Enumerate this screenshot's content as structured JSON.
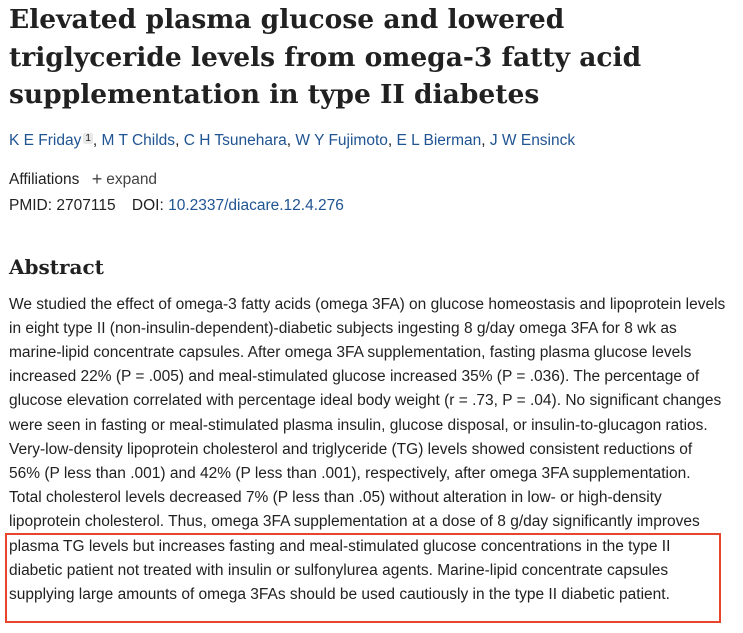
{
  "article": {
    "title": "Elevated plasma glucose and lowered triglyceride levels from omega-3 fatty acid supplementation in type II diabetes",
    "authors": [
      {
        "name": "K E Friday",
        "sup": "1"
      },
      {
        "name": "M T Childs"
      },
      {
        "name": "C H Tsunehara"
      },
      {
        "name": "W Y Fujimoto"
      },
      {
        "name": "E L Bierman"
      },
      {
        "name": "J W Ensinck"
      }
    ],
    "affiliations_label": "Affiliations",
    "expand_label": "expand",
    "pmid_label": "PMID:",
    "pmid": "2707115",
    "doi_label": "DOI:",
    "doi": "10.2337/diacare.12.4.276"
  },
  "abstract": {
    "heading": "Abstract",
    "text": "We studied the effect of omega-3 fatty acids (omega 3FA) on glucose homeostasis and lipoprotein levels in eight type II (non-insulin-dependent)-diabetic subjects ingesting 8 g/day omega 3FA for 8 wk as marine-lipid concentrate capsules. After omega 3FA supplementation, fasting plasma glucose levels increased 22% (P = .005) and meal-stimulated glucose increased 35% (P = .036). The percentage of glucose elevation correlated with percentage ideal body weight (r = .73, P = .04). No significant changes were seen in fasting or meal-stimulated plasma insulin, glucose disposal, or insulin-to-glucagon ratios. Very-low-density lipoprotein cholesterol and triglyceride (TG) levels showed consistent reductions of 56% (P less than .001) and 42% (P less than .001), respectively, after omega 3FA supplementation. Total cholesterol levels decreased 7% (P less than .05) without alteration in low- or high-density lipoprotein cholesterol. Thus, omega 3FA supplementation at a dose of 8 g/day significantly improves plasma TG levels but increases fasting and meal-stimulated glucose concentrations in the type II diabetic patient not treated with insulin or sulfonylurea agents. Marine-lipid concentrate capsules supplying large amounts of omega 3FAs should be used cautiously in the type II diabetic patient."
  },
  "annotation": {
    "highlight_color": "#e8452c"
  }
}
